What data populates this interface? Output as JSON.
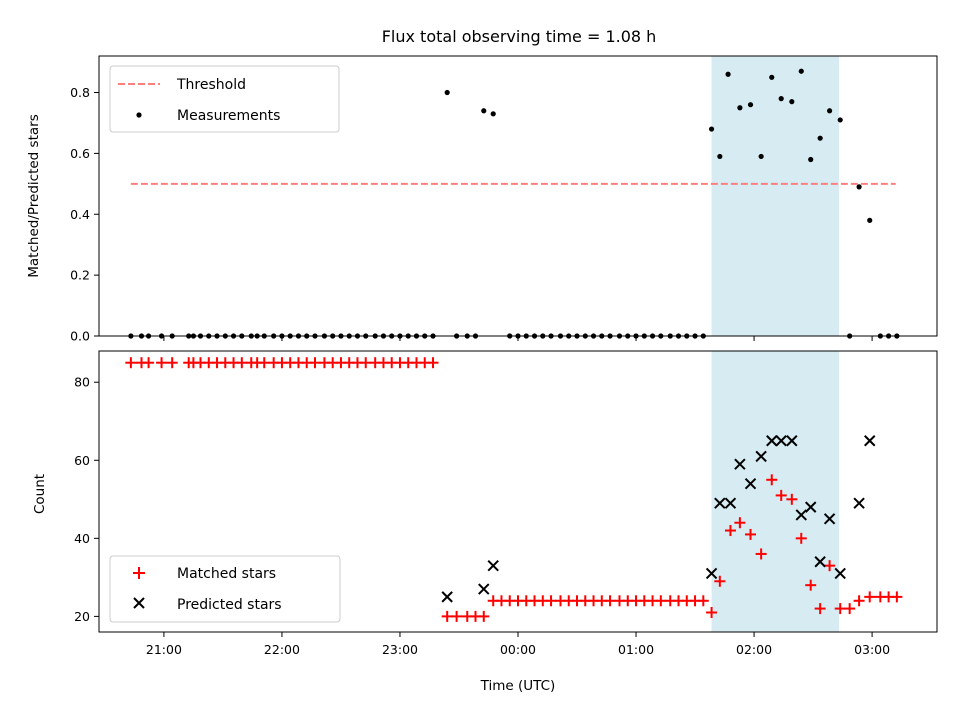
{
  "chart_data": {
    "title": "Flux total observing time = 1.08 h",
    "xlabel": "Time (UTC)",
    "x_unit": "hours UTC since 20:00 of first night",
    "xlim": [
      0.45,
      7.55
    ],
    "xticks": [
      {
        "value": 1,
        "label": "21:00"
      },
      {
        "value": 2,
        "label": "22:00"
      },
      {
        "value": 3,
        "label": "23:00"
      },
      {
        "value": 4,
        "label": "00:00"
      },
      {
        "value": 5,
        "label": "01:00"
      },
      {
        "value": 6,
        "label": "02:00"
      },
      {
        "value": 7,
        "label": "03:00"
      }
    ],
    "highlight_span": {
      "x0": 5.64,
      "x1": 6.72,
      "color": "#add8e6"
    },
    "colors": {
      "threshold": "#ff7f7f",
      "measurements": "#000000",
      "matched": "#ff0000",
      "predicted": "#000000",
      "span": "#add8e6"
    },
    "panels": [
      {
        "id": "ratio",
        "type": "scatter",
        "ylabel": "Matched/Predicted stars",
        "ylim": [
          0,
          0.92
        ],
        "yticks": [
          0,
          0.2,
          0.4,
          0.6,
          0.8
        ],
        "ytick_labels": [
          "0.0",
          "0.2",
          "0.4",
          "0.6",
          "0.8"
        ],
        "legend_position": "top-left",
        "threshold": {
          "name": "Threshold",
          "y": 0.5,
          "x0": 0.72,
          "x1": 7.2
        },
        "measurements": {
          "name": "Measurements",
          "x": [
            0.72,
            0.81,
            0.87,
            0.98,
            1.07,
            1.21,
            1.25,
            1.31,
            1.38,
            1.45,
            1.52,
            1.59,
            1.66,
            1.74,
            1.79,
            1.85,
            1.93,
            2.0,
            2.07,
            2.14,
            2.21,
            2.28,
            2.36,
            2.43,
            2.5,
            2.57,
            2.64,
            2.71,
            2.79,
            2.86,
            2.93,
            3.0,
            3.07,
            3.14,
            3.21,
            3.28,
            3.4,
            3.48,
            3.57,
            3.64,
            3.71,
            3.79,
            3.93,
            4.0,
            4.07,
            4.14,
            4.21,
            4.28,
            4.36,
            4.43,
            4.5,
            4.57,
            4.64,
            4.71,
            4.78,
            4.86,
            4.93,
            5.0,
            5.07,
            5.14,
            5.21,
            5.29,
            5.36,
            5.43,
            5.5,
            5.57,
            5.64,
            5.71,
            5.78,
            5.88,
            5.97,
            6.06,
            6.15,
            6.23,
            6.32,
            6.4,
            6.48,
            6.56,
            6.64,
            6.73,
            6.81,
            6.89,
            6.98,
            7.07,
            7.14,
            7.21
          ],
          "y": [
            0,
            0,
            0,
            0,
            0,
            0,
            0,
            0,
            0,
            0,
            0,
            0,
            0,
            0,
            0,
            0,
            0,
            0,
            0,
            0,
            0,
            0,
            0,
            0,
            0,
            0,
            0,
            0,
            0,
            0,
            0,
            0,
            0,
            0,
            0,
            0,
            0.8,
            0,
            0,
            0,
            0.74,
            0.73,
            0,
            0,
            0,
            0,
            0,
            0,
            0,
            0,
            0,
            0,
            0,
            0,
            0,
            0,
            0,
            0,
            0,
            0,
            0,
            0,
            0,
            0,
            0,
            0,
            0.68,
            0.59,
            0.86,
            0.75,
            0.76,
            0.59,
            0.85,
            0.78,
            0.77,
            0.87,
            0.58,
            0.65,
            0.74,
            0.71,
            0,
            0.49,
            0.38,
            0,
            0,
            0
          ]
        }
      },
      {
        "id": "counts",
        "type": "scatter",
        "ylabel": "Count",
        "ylim": [
          16,
          88
        ],
        "yticks": [
          20,
          40,
          60,
          80
        ],
        "ytick_labels": [
          "20",
          "40",
          "60",
          "80"
        ],
        "legend_position": "bottom-left",
        "series": [
          {
            "name": "Matched stars",
            "marker": "plus",
            "x": [
              0.72,
              0.81,
              0.87,
              0.98,
              1.07,
              1.21,
              1.25,
              1.31,
              1.38,
              1.45,
              1.52,
              1.59,
              1.66,
              1.74,
              1.79,
              1.85,
              1.93,
              2.0,
              2.07,
              2.14,
              2.21,
              2.28,
              2.36,
              2.43,
              2.5,
              2.57,
              2.64,
              2.71,
              2.79,
              2.86,
              2.93,
              3.0,
              3.07,
              3.14,
              3.21,
              3.28,
              3.4,
              3.48,
              3.57,
              3.64,
              3.71,
              3.79,
              3.86,
              3.93,
              4.0,
              4.07,
              4.14,
              4.21,
              4.28,
              4.36,
              4.43,
              4.5,
              4.57,
              4.64,
              4.71,
              4.78,
              4.86,
              4.93,
              5.0,
              5.07,
              5.14,
              5.21,
              5.29,
              5.36,
              5.43,
              5.5,
              5.57,
              5.64,
              5.71,
              5.8,
              5.88,
              5.97,
              6.06,
              6.15,
              6.23,
              6.32,
              6.4,
              6.48,
              6.56,
              6.64,
              6.73,
              6.81,
              6.89,
              6.98,
              7.07,
              7.14,
              7.21
            ],
            "y": [
              85,
              85,
              85,
              85,
              85,
              85,
              85,
              85,
              85,
              85,
              85,
              85,
              85,
              85,
              85,
              85,
              85,
              85,
              85,
              85,
              85,
              85,
              85,
              85,
              85,
              85,
              85,
              85,
              85,
              85,
              85,
              85,
              85,
              85,
              85,
              85,
              20,
              20,
              20,
              20,
              20,
              24,
              24,
              24,
              24,
              24,
              24,
              24,
              24,
              24,
              24,
              24,
              24,
              24,
              24,
              24,
              24,
              24,
              24,
              24,
              24,
              24,
              24,
              24,
              24,
              24,
              24,
              21,
              29,
              42,
              44,
              41,
              36,
              55,
              51,
              50,
              40,
              28,
              22,
              33,
              22,
              22,
              24,
              25,
              25,
              25,
              25
            ]
          },
          {
            "name": "Predicted stars",
            "marker": "x",
            "x": [
              3.4,
              3.71,
              3.79,
              5.64,
              5.71,
              5.8,
              5.88,
              5.97,
              6.06,
              6.15,
              6.23,
              6.32,
              6.4,
              6.48,
              6.56,
              6.64,
              6.73,
              6.89,
              6.98
            ],
            "y": [
              25,
              27,
              33,
              31,
              49,
              49,
              59,
              54,
              61,
              65,
              65,
              65,
              46,
              48,
              34,
              45,
              31,
              49,
              65
            ]
          }
        ]
      }
    ]
  }
}
